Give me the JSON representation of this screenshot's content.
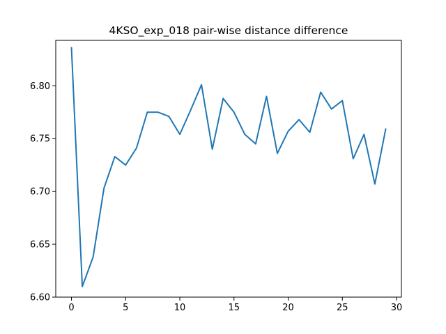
{
  "chart_data": {
    "type": "line",
    "title": "4KSO_exp_018 pair-wise distance difference",
    "xlabel": "",
    "ylabel": "",
    "xlim": [
      -1.45,
      30.45
    ],
    "ylim": [
      6.6,
      6.843
    ],
    "xticks": [
      0,
      5,
      10,
      15,
      20,
      25,
      30
    ],
    "xtick_labels": [
      "0",
      "5",
      "10",
      "15",
      "20",
      "25",
      "30"
    ],
    "yticks": [
      6.6,
      6.65,
      6.7,
      6.75,
      6.8
    ],
    "ytick_labels": [
      "6.60",
      "6.65",
      "6.70",
      "6.75",
      "6.80"
    ],
    "grid": false,
    "legend": "none",
    "series": [
      {
        "color": "#1f77b4",
        "x": [
          0,
          1,
          2,
          3,
          4,
          5,
          6,
          7,
          8,
          9,
          10,
          11,
          12,
          13,
          14,
          15,
          16,
          17,
          18,
          19,
          20,
          21,
          22,
          23,
          24,
          25,
          26,
          27,
          28,
          29
        ],
        "values": [
          6.836,
          6.61,
          6.638,
          6.703,
          6.733,
          6.725,
          6.741,
          6.775,
          6.775,
          6.771,
          6.754,
          6.777,
          6.801,
          6.74,
          6.788,
          6.775,
          6.754,
          6.745,
          6.79,
          6.736,
          6.757,
          6.768,
          6.756,
          6.794,
          6.778,
          6.786,
          6.731,
          6.754,
          6.707,
          6.759
        ]
      }
    ]
  }
}
